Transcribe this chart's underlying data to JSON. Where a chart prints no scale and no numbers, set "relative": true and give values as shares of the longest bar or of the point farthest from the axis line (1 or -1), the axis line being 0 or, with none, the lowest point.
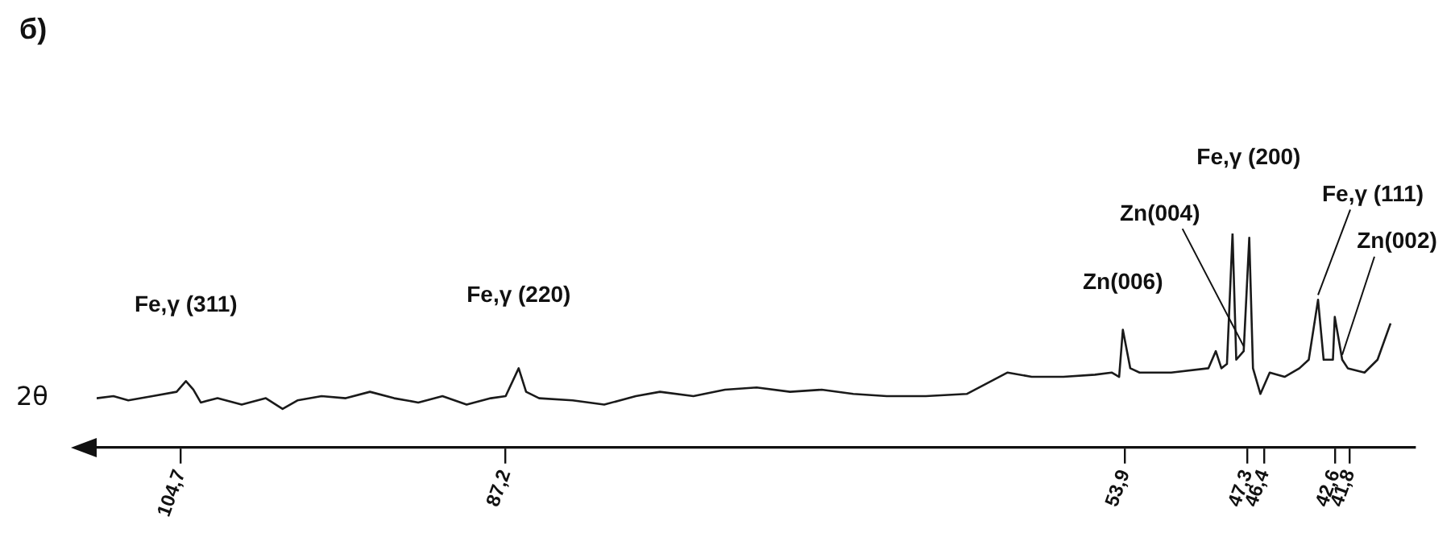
{
  "chart_data": {
    "type": "line",
    "title": "б)",
    "xlabel": "2θ",
    "relative": true,
    "color": "#1a1a1a",
    "xlim": [
      109.2,
      38.3
    ],
    "xticks": [
      {
        "value": 104.7,
        "label": "104,7"
      },
      {
        "value": 87.2,
        "label": "87,2"
      },
      {
        "value": 53.9,
        "label": "53,9"
      },
      {
        "value": 47.3,
        "label": "47,3"
      },
      {
        "value": 46.4,
        "label": "46,4"
      },
      {
        "value": 42.6,
        "label": "42,6"
      },
      {
        "value": 41.8,
        "label": "41,8"
      }
    ],
    "x": [
      109.2,
      108.3,
      107.5,
      106.2,
      104.9,
      104.4,
      104.0,
      103.6,
      102.7,
      101.4,
      100.1,
      99.2,
      98.4,
      97.1,
      95.8,
      94.5,
      93.2,
      91.9,
      90.6,
      89.3,
      88.0,
      87.2,
      86.5,
      86.1,
      85.4,
      83.6,
      81.9,
      80.2,
      78.9,
      77.1,
      75.4,
      73.7,
      71.9,
      70.2,
      68.5,
      66.7,
      64.6,
      62.4,
      60.2,
      58.9,
      57.2,
      55.5,
      54.6,
      54.2,
      54.0,
      53.6,
      53.1,
      51.4,
      49.4,
      49.0,
      48.7,
      48.4,
      48.1,
      47.9,
      47.5,
      47.2,
      47.0,
      46.6,
      46.1,
      45.3,
      44.5,
      44.0,
      43.5,
      43.2,
      42.7,
      42.6,
      42.2,
      41.9,
      41.0,
      40.3,
      39.6
    ],
    "values": [
      0.23,
      0.24,
      0.22,
      0.24,
      0.26,
      0.31,
      0.27,
      0.21,
      0.23,
      0.2,
      0.23,
      0.18,
      0.22,
      0.24,
      0.23,
      0.26,
      0.23,
      0.21,
      0.24,
      0.2,
      0.23,
      0.24,
      0.37,
      0.26,
      0.23,
      0.22,
      0.2,
      0.24,
      0.26,
      0.24,
      0.27,
      0.28,
      0.26,
      0.27,
      0.25,
      0.24,
      0.24,
      0.25,
      0.35,
      0.33,
      0.33,
      0.34,
      0.35,
      0.33,
      0.55,
      0.37,
      0.35,
      0.35,
      0.37,
      0.45,
      0.37,
      0.39,
      1,
      0.41,
      0.45,
      0.98,
      0.37,
      0.25,
      0.35,
      0.33,
      0.37,
      0.41,
      0.69,
      0.41,
      0.41,
      0.61,
      0.41,
      0.37,
      0.35,
      0.41,
      0.58
    ],
    "annotations": [
      {
        "text": "Fe,γ (311)",
        "x": 104.4,
        "y": 0.31
      },
      {
        "text": "Fe,γ (220)",
        "x": 86.5,
        "y": 0.37
      },
      {
        "text": "Zn(006)",
        "x": 54.0,
        "y": 0.55
      },
      {
        "text": "Zn(004)",
        "x": 47.5,
        "y": 0.45
      },
      {
        "text": "Fe,γ (200)",
        "x": 48.1,
        "y": 1
      },
      {
        "text": "Fe,γ (111)",
        "x": 43.5,
        "y": 0.69
      },
      {
        "text": "Zn(002)",
        "x": 42.2,
        "y": 0.41
      }
    ]
  }
}
